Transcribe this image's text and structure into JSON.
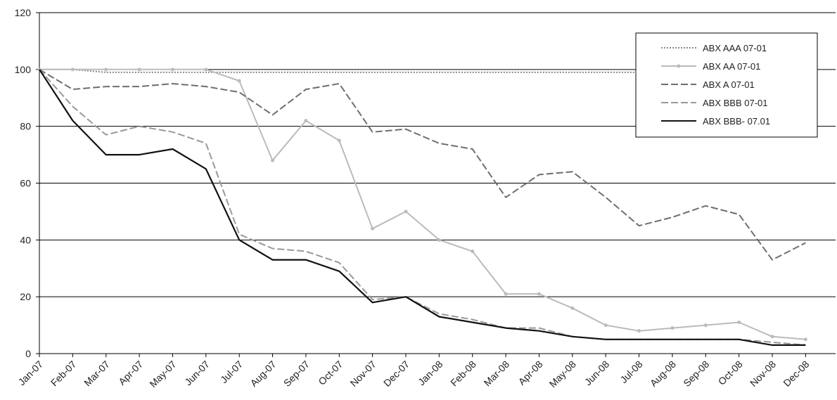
{
  "chart_data": {
    "type": "line",
    "title": "",
    "xlabel": "",
    "ylabel": "",
    "ylim": [
      0,
      120
    ],
    "yticks": [
      0,
      20,
      40,
      60,
      80,
      100,
      120
    ],
    "grid": "horizontal",
    "legend_position": "top-right",
    "x_tick_labels": [
      "Jan-07",
      "Feb-07",
      "Mar-07",
      "Apr-07",
      "May-07",
      "Jun-07",
      "Jul-07",
      "Aug-07",
      "Sep-07",
      "Oct-07",
      "Nov-07",
      "Dec-07",
      "Jan-08",
      "Feb-08",
      "Mar-08",
      "Apr-08",
      "May-08",
      "Jun-08",
      "Jul-08",
      "Aug-08",
      "Sep-08",
      "Oct-08",
      "Nov-08",
      "Dec-08"
    ],
    "x": [
      "Jan-07",
      "Feb-07",
      "Mar-07",
      "Apr-07",
      "May-07",
      "Jun-07",
      "Jul-07",
      "Aug-07",
      "Sep-07",
      "Oct-07",
      "Nov-07",
      "Dec-07",
      "Jan-08",
      "Feb-08",
      "Mar-08",
      "Apr-08",
      "May-08",
      "Jun-08",
      "Jul-08",
      "Aug-08",
      "Sep-08",
      "Oct-08",
      "Nov-08",
      "Dec-08"
    ],
    "series": [
      {
        "name": "ABX AAA 07-01",
        "color": "#888888",
        "style": "dotted",
        "values": [
          100,
          100,
          99,
          99,
          99,
          99,
          99,
          99,
          99,
          99,
          99,
          99,
          99,
          99,
          99,
          99,
          99,
          99,
          99,
          99,
          99,
          99,
          99,
          99
        ]
      },
      {
        "name": "ABX AA 07-01",
        "color": "#bbbbbb",
        "style": "solid-marker",
        "values": [
          100,
          100,
          100,
          100,
          100,
          100,
          96,
          68,
          82,
          75,
          44,
          50,
          40,
          36,
          21,
          21,
          16,
          10,
          8,
          9,
          10,
          11,
          6,
          5
        ]
      },
      {
        "name": "ABX A 07-01",
        "color": "#6e6e6e",
        "style": "dashed",
        "values": [
          100,
          93,
          94,
          94,
          95,
          94,
          92,
          84,
          93,
          95,
          78,
          79,
          74,
          72,
          55,
          63,
          64,
          55,
          45,
          48,
          52,
          49,
          33,
          39
        ]
      },
      {
        "name": "ABX BBB 07-01",
        "color": "#999999",
        "style": "dashed",
        "values": [
          100,
          87,
          77,
          80,
          78,
          74,
          42,
          37,
          36,
          32,
          19,
          20,
          14,
          12,
          9,
          9,
          6,
          5,
          5,
          5,
          5,
          5,
          4,
          3
        ]
      },
      {
        "name": "ABX BBB- 07.01",
        "color": "#111111",
        "style": "solid",
        "values": [
          100,
          82,
          70,
          70,
          72,
          65,
          40,
          33,
          33,
          29,
          18,
          20,
          13,
          11,
          9,
          8,
          6,
          5,
          5,
          5,
          5,
          5,
          3,
          3
        ]
      }
    ]
  }
}
